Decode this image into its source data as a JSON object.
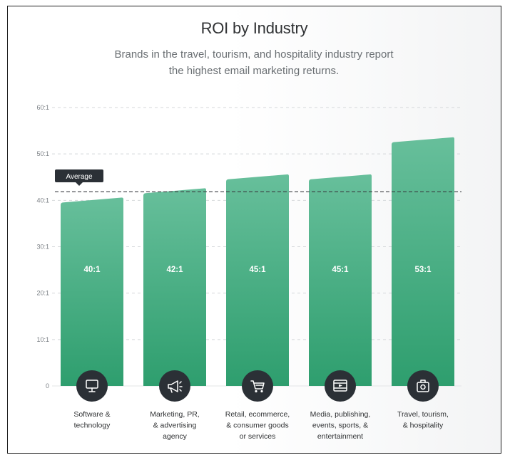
{
  "chart_data": {
    "type": "bar",
    "title": "ROI by Industry",
    "subtitle_lines": [
      "Brands in the travel, tourism, and hospitality industry report",
      "the highest email marketing returns."
    ],
    "categories": [
      [
        "Software &",
        "technology"
      ],
      [
        "Marketing, PR,",
        "& advertising",
        "agency"
      ],
      [
        "Retail, ecommerce,",
        "& consumer goods",
        "or services"
      ],
      [
        "Media, publishing,",
        "events, sports, &",
        "entertainment"
      ],
      [
        "Travel, tourism,",
        "& hospitality"
      ]
    ],
    "values": [
      40,
      42,
      45,
      45,
      53
    ],
    "value_labels": [
      "40:1",
      "42:1",
      "45:1",
      "45:1",
      "53:1"
    ],
    "icons": [
      "monitor-icon",
      "megaphone-icon",
      "shopping-cart-icon",
      "video-player-icon",
      "suitcase-icon"
    ],
    "ylim": [
      0,
      60
    ],
    "yticks": [
      0,
      10,
      20,
      30,
      40,
      50,
      60
    ],
    "ytick_labels": [
      "0",
      "10:1",
      "20:1",
      "30:1",
      "40:1",
      "50:1",
      "60:1"
    ],
    "average": {
      "label": "Average",
      "value": 42
    },
    "grid": true,
    "colors": {
      "bar_top": "#67bf9b",
      "bar_bottom": "#2e9e6e",
      "icon_circle": "#2b3036",
      "text": "#2f3133",
      "grid": "#d4d7da"
    }
  }
}
